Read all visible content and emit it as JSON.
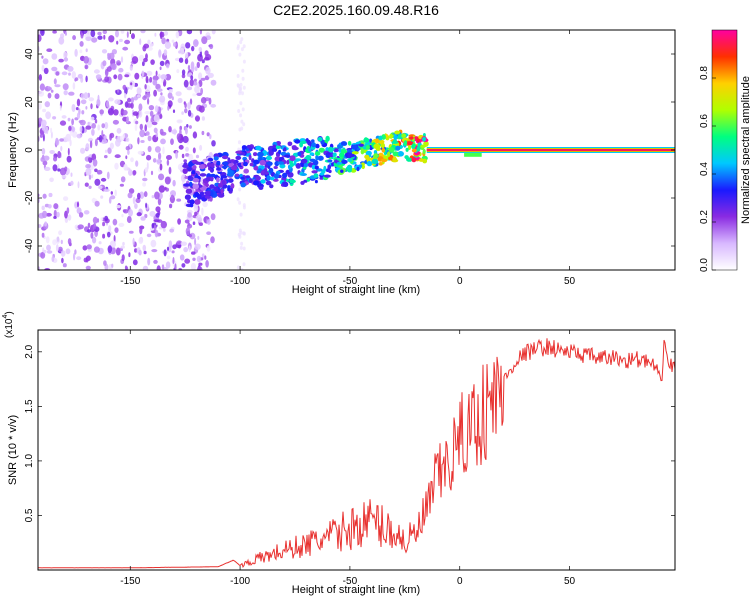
{
  "figure_title": "C2E2.2025.160.09.48.R16",
  "chart_data": [
    {
      "type": "heatmap",
      "title": "C2E2.2025.160.09.48.R16",
      "xlabel": "Height of straight line (km)",
      "ylabel": "Frequency (Hz)",
      "xlim": [
        -192,
        98
      ],
      "ylim": [
        -50,
        50
      ],
      "xticks": [
        -150,
        -100,
        -50,
        0,
        50
      ],
      "yticks": [
        -40,
        -20,
        0,
        20,
        40
      ],
      "grid": false,
      "colorbar": {
        "label": "Normalized spectral amplitude",
        "range": [
          0,
          1
        ],
        "ticks": [
          "0.0",
          "0.2",
          "0.4",
          "0.6",
          "0.8"
        ],
        "colormap": [
          "#ffffff",
          "#d8b8ff",
          "#8a2be2",
          "#1a1aff",
          "#00c8ff",
          "#00ff80",
          "#b0ff00",
          "#ffd000",
          "#ff3000",
          "#ff00a0"
        ]
      },
      "features": [
        {
          "name": "scattered noise",
          "x_range": [
            -192,
            -112
          ],
          "y_range": [
            -50,
            50
          ],
          "amplitude": 0.1
        },
        {
          "name": "sloped signal band",
          "x": [
            -125,
            -100,
            -75,
            -50,
            -25,
            -15
          ],
          "y_center": [
            -15,
            -8,
            -5,
            -3,
            2,
            0
          ],
          "amplitude": [
            0.3,
            0.35,
            0.45,
            0.55,
            0.8,
            0.95
          ]
        },
        {
          "name": "steady line",
          "x_range": [
            -15,
            98
          ],
          "y_center": 0,
          "amplitude": 1.0
        }
      ]
    },
    {
      "type": "line",
      "xlabel": "Height of straight line (km)",
      "ylabel": "SNR (10 * v/v)",
      "yscale_label": "(x10",
      "yscale_exponent": "4",
      "xlim": [
        -192,
        98
      ],
      "ylim": [
        0,
        22000
      ],
      "xticks": [
        -150,
        -100,
        -50,
        0,
        50
      ],
      "yticks": [
        5000,
        10000,
        15000,
        20000
      ],
      "ytick_labels": [
        "0.5",
        "1.0",
        "1.5",
        "2.0"
      ],
      "color": "#e8312f",
      "series": [
        {
          "x": [
            -192,
            -150,
            -110,
            -103,
            -100,
            -90,
            -80,
            -70,
            -60,
            -50,
            -40,
            -30,
            -25,
            -20,
            -15,
            -12,
            -10,
            -5,
            0,
            5,
            10,
            15,
            18,
            20,
            25,
            30,
            35,
            40,
            45,
            50,
            55,
            60,
            65,
            70,
            75,
            80,
            85,
            88,
            90,
            92,
            93,
            95,
            98
          ],
          "y": [
            200,
            200,
            300,
            900,
            400,
            1100,
            1700,
            2200,
            2800,
            3600,
            4300,
            3300,
            2500,
            3000,
            5000,
            7500,
            8200,
            9500,
            11500,
            12800,
            13800,
            14800,
            15800,
            17200,
            19000,
            19800,
            20200,
            20400,
            20100,
            19900,
            19700,
            19500,
            19300,
            19400,
            19100,
            19300,
            19000,
            18700,
            18000,
            16500,
            21800,
            18500,
            18800
          ]
        }
      ]
    }
  ]
}
